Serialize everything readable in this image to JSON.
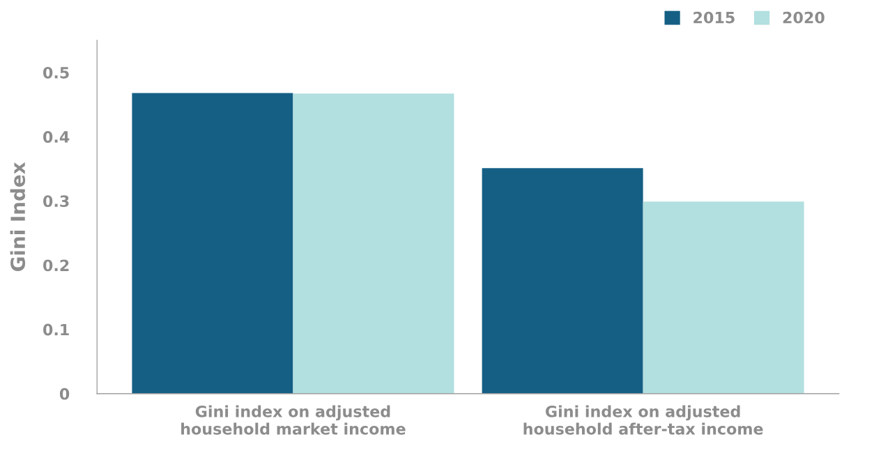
{
  "chart_data": {
    "type": "bar",
    "ylabel": "Gini Index",
    "categories": [
      "Gini index on adjusted\nhousehold market income",
      "Gini index on adjusted\nhousehold after-tax income"
    ],
    "series": [
      {
        "name": "2015",
        "color": "#155f85",
        "values": [
          0.468,
          0.351
        ]
      },
      {
        "name": "2020",
        "color": "#b2dfdf",
        "values": [
          0.467,
          0.299
        ]
      }
    ],
    "ylim": [
      0,
      0.55
    ],
    "yticks": [
      0,
      0.1,
      0.2,
      0.3,
      0.4,
      0.5
    ],
    "grid": false,
    "legend": "top right"
  }
}
